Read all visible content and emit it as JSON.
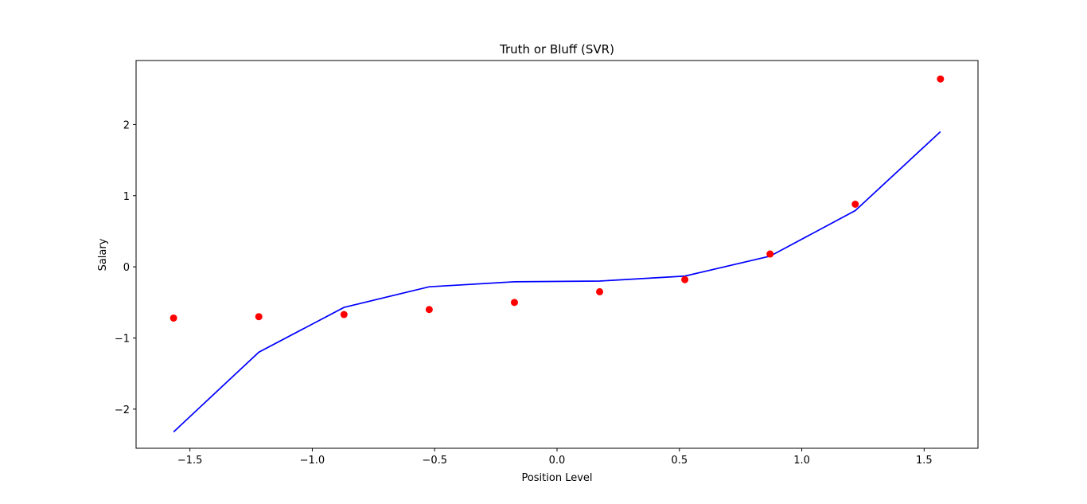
{
  "chart_data": {
    "type": "scatter",
    "title": "Truth or Bluff (SVR)",
    "xlabel": "Position Level",
    "ylabel": "Salary",
    "xlim": [
      -1.72,
      1.72
    ],
    "ylim": [
      -2.55,
      2.9
    ],
    "x_ticks": [
      -1.5,
      -1.0,
      -0.5,
      0.0,
      0.5,
      1.0,
      1.5
    ],
    "x_tick_labels": [
      "−1.5",
      "−1.0",
      "−0.5",
      "0.0",
      "0.5",
      "1.0",
      "1.5"
    ],
    "y_ticks": [
      -2,
      -1,
      0,
      1,
      2
    ],
    "y_tick_labels": [
      "−2",
      "−1",
      "0",
      "1",
      "2"
    ],
    "grid": false,
    "series": [
      {
        "kind": "scatter",
        "color": "#ff0000",
        "x": [
          -1.5667,
          -1.2185,
          -0.8704,
          -0.5222,
          -0.1741,
          0.1741,
          0.5222,
          0.8704,
          1.2185,
          1.5667
        ],
        "y": [
          -0.72,
          -0.7,
          -0.67,
          -0.6,
          -0.5,
          -0.35,
          -0.18,
          0.18,
          0.88,
          2.64
        ]
      },
      {
        "kind": "line",
        "color": "#0000ff",
        "x": [
          -1.5667,
          -1.2185,
          -0.8704,
          -0.5222,
          -0.1741,
          0.1741,
          0.5222,
          0.8704,
          1.2185,
          1.5667
        ],
        "y": [
          -2.32,
          -1.2,
          -0.57,
          -0.28,
          -0.21,
          -0.2,
          -0.13,
          0.15,
          0.79,
          1.9
        ]
      }
    ]
  }
}
